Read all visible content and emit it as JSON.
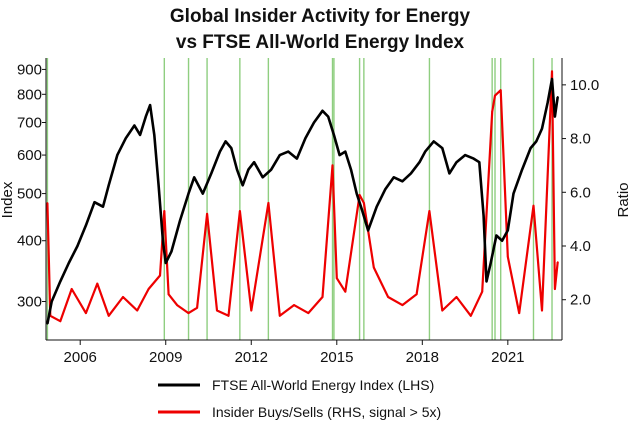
{
  "chart_data": {
    "type": "line",
    "title_line1": "Global Insider Activity for Energy",
    "title_line2": "vs FTSE All-World Energy Index",
    "ylabel_left": "Index",
    "ylabel_right": "Ratio",
    "xlim": [
      2004.8,
      2022.9
    ],
    "ylim_left": [
      250,
      950
    ],
    "ylim_right": [
      0.5,
      11.0
    ],
    "left_scale": "log",
    "x_ticks": [
      2006,
      2009,
      2012,
      2015,
      2018,
      2021
    ],
    "x_tick_labels": [
      "2006",
      "2009",
      "2012",
      "2015",
      "2018",
      "2021"
    ],
    "y_left_ticks": [
      300,
      400,
      500,
      600,
      700,
      800,
      900
    ],
    "y_left_tick_labels": [
      "300",
      "400",
      "500",
      "600",
      "700",
      "800",
      "900"
    ],
    "y_right_ticks": [
      2,
      4,
      6,
      8,
      10
    ],
    "y_right_tick_labels": [
      "2.0",
      "4.0",
      "6.0",
      "8.0",
      "10.0"
    ],
    "signal_lines_x": [
      2004.85,
      2008.95,
      2009.8,
      2010.45,
      2011.6,
      2012.6,
      2014.85,
      2014.9,
      2015.8,
      2015.95,
      2018.25,
      2020.45,
      2020.55,
      2020.75,
      2021.9,
      2022.55
    ],
    "series": [
      {
        "name": "FTSE All-World Energy Index (LHS)",
        "axis": "left",
        "color": "#000000",
        "x": [
          2004.85,
          2005.0,
          2005.3,
          2005.6,
          2005.9,
          2006.2,
          2006.5,
          2006.8,
          2007.0,
          2007.3,
          2007.6,
          2007.9,
          2008.1,
          2008.3,
          2008.45,
          2008.6,
          2008.75,
          2008.9,
          2009.0,
          2009.2,
          2009.5,
          2009.8,
          2010.0,
          2010.3,
          2010.6,
          2010.9,
          2011.1,
          2011.3,
          2011.5,
          2011.7,
          2011.9,
          2012.1,
          2012.4,
          2012.7,
          2013.0,
          2013.3,
          2013.6,
          2013.9,
          2014.2,
          2014.5,
          2014.7,
          2014.9,
          2015.1,
          2015.3,
          2015.5,
          2015.7,
          2015.9,
          2016.1,
          2016.4,
          2016.7,
          2017.0,
          2017.3,
          2017.6,
          2017.9,
          2018.1,
          2018.4,
          2018.7,
          2018.95,
          2019.2,
          2019.5,
          2019.8,
          2020.0,
          2020.15,
          2020.25,
          2020.4,
          2020.6,
          2020.8,
          2021.0,
          2021.2,
          2021.5,
          2021.8,
          2022.0,
          2022.2,
          2022.4,
          2022.55,
          2022.65,
          2022.75
        ],
        "values": [
          270,
          300,
          330,
          360,
          390,
          430,
          480,
          470,
          520,
          600,
          650,
          690,
          660,
          720,
          760,
          660,
          520,
          400,
          360,
          380,
          440,
          500,
          540,
          500,
          550,
          610,
          640,
          620,
          560,
          520,
          560,
          580,
          540,
          560,
          600,
          610,
          590,
          650,
          700,
          740,
          720,
          660,
          600,
          610,
          560,
          500,
          460,
          420,
          470,
          510,
          540,
          530,
          550,
          580,
          610,
          640,
          620,
          550,
          580,
          600,
          590,
          580,
          450,
          330,
          360,
          410,
          400,
          420,
          500,
          560,
          620,
          640,
          680,
          770,
          860,
          720,
          790
        ]
      },
      {
        "name": "Insider Buys/Sells (RHS, signal > 5x)",
        "axis": "right",
        "color": "#ee0000",
        "x": [
          2004.85,
          2004.95,
          2005.3,
          2005.7,
          2006.2,
          2006.6,
          2007.0,
          2007.5,
          2008.0,
          2008.4,
          2008.8,
          2008.95,
          2009.1,
          2009.4,
          2009.8,
          2010.1,
          2010.45,
          2010.8,
          2011.2,
          2011.6,
          2012.0,
          2012.6,
          2013.0,
          2013.5,
          2014.0,
          2014.5,
          2014.85,
          2015.0,
          2015.3,
          2015.8,
          2015.95,
          2016.3,
          2016.8,
          2017.3,
          2017.8,
          2018.25,
          2018.7,
          2019.2,
          2019.7,
          2020.1,
          2020.45,
          2020.55,
          2020.75,
          2021.0,
          2021.4,
          2021.9,
          2022.2,
          2022.55,
          2022.65,
          2022.75
        ],
        "values": [
          5.6,
          1.4,
          1.2,
          2.4,
          1.5,
          2.6,
          1.4,
          2.1,
          1.6,
          2.4,
          2.9,
          5.3,
          2.2,
          1.8,
          1.5,
          1.7,
          5.2,
          1.6,
          1.4,
          5.3,
          1.6,
          5.6,
          1.4,
          1.8,
          1.5,
          2.1,
          7.0,
          2.8,
          2.3,
          5.9,
          5.6,
          3.2,
          2.1,
          1.8,
          2.2,
          5.3,
          1.6,
          2.1,
          1.4,
          2.3,
          9.0,
          9.6,
          9.8,
          3.6,
          1.5,
          5.5,
          1.6,
          10.5,
          2.4,
          3.4
        ]
      }
    ],
    "legend": [
      {
        "label": "FTSE All-World Energy Index (LHS)",
        "color": "#000000"
      },
      {
        "label": "Insider Buys/Sells (RHS, signal > 5x)",
        "color": "#ee0000"
      }
    ],
    "signal_line_color": "#8fce80"
  }
}
